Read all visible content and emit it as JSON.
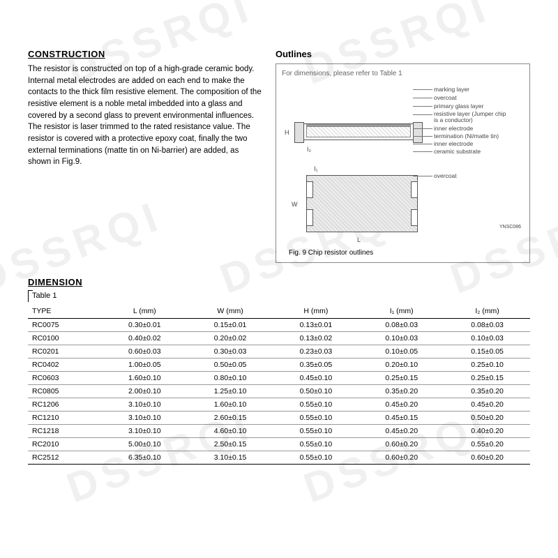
{
  "watermark": "DSSRQI",
  "construction": {
    "title": "CONSTRUCTION",
    "body": "The resistor is constructed on top of a high-grade ceramic body. Internal metal electrodes are added on each end to make the contacts to the thick film resistive element. The composition of the resistive element is a noble metal imbedded into a glass and covered by a second glass to prevent environmental influences. The resistor is laser trimmed to the rated resistance value. The resistor is covered with a protective epoxy coat, finally the two external terminations (matte tin on Ni-barrier) are added, as shown in Fig.9."
  },
  "outlines": {
    "title": "Outlines",
    "box_caption": "For dimensions, please refer to Table 1",
    "layer_labels": {
      "marking": "marking layer",
      "overcoat": "overcoat",
      "primary_glass": "primary glass layer",
      "resistive": "resistive layer (Jumper chip is a conductor)",
      "inner_electrode": "inner electrode",
      "termination": "termination (Ni/matte tin)",
      "inner_electrode2": "inner electrode",
      "substrate": "ceramic substrate"
    },
    "chip_overcoat": "overcoat",
    "dims": {
      "H": "H",
      "W": "W",
      "L": "L",
      "I1": "I₁",
      "I2": "I₂"
    },
    "fig_caption": "Fig. 9   Chip resistor outlines",
    "corner": "YNSC086"
  },
  "dimension": {
    "title": "DIMENSION",
    "table_label": "Table 1",
    "columns": [
      "TYPE",
      "L (mm)",
      "W (mm)",
      "H (mm)",
      "I₁ (mm)",
      "I₂ (mm)"
    ],
    "col_keys": [
      "type",
      "l",
      "w",
      "h",
      "i1",
      "i2"
    ],
    "rows": [
      {
        "type": "RC0075",
        "l": "0.30±0.01",
        "w": "0.15±0.01",
        "h": "0.13±0.01",
        "i1": "0.08±0.03",
        "i2": "0.08±0.03"
      },
      {
        "type": "RC0100",
        "l": "0.40±0.02",
        "w": "0.20±0.02",
        "h": "0.13±0.02",
        "i1": "0.10±0.03",
        "i2": "0.10±0.03"
      },
      {
        "type": "RC0201",
        "l": "0.60±0.03",
        "w": "0.30±0.03",
        "h": "0.23±0.03",
        "i1": "0.10±0.05",
        "i2": "0.15±0.05"
      },
      {
        "type": "RC0402",
        "l": "1.00±0.05",
        "w": "0.50±0.05",
        "h": "0.35±0.05",
        "i1": "0.20±0.10",
        "i2": "0.25±0.10"
      },
      {
        "type": "RC0603",
        "l": "1.60±0.10",
        "w": "0.80±0.10",
        "h": "0.45±0.10",
        "i1": "0.25±0.15",
        "i2": "0.25±0.15"
      },
      {
        "type": "RC0805",
        "l": "2.00±0.10",
        "w": "1.25±0.10",
        "h": "0.50±0.10",
        "i1": "0.35±0.20",
        "i2": "0.35±0.20"
      },
      {
        "type": "RC1206",
        "l": "3.10±0.10",
        "w": "1.60±0.10",
        "h": "0.55±0.10",
        "i1": "0.45±0.20",
        "i2": "0.45±0.20"
      },
      {
        "type": "RC1210",
        "l": "3.10±0.10",
        "w": "2.60±0.15",
        "h": "0.55±0.10",
        "i1": "0.45±0.15",
        "i2": "0.50±0.20"
      },
      {
        "type": "RC1218",
        "l": "3.10±0.10",
        "w": "4.60±0.10",
        "h": "0.55±0.10",
        "i1": "0.45±0.20",
        "i2": "0.40±0.20"
      },
      {
        "type": "RC2010",
        "l": "5.00±0.10",
        "w": "2.50±0.15",
        "h": "0.55±0.10",
        "i1": "0.60±0.20",
        "i2": "0.55±0.20"
      },
      {
        "type": "RC2512",
        "l": "6.35±0.10",
        "w": "3.10±0.15",
        "h": "0.55±0.10",
        "i1": "0.60±0.20",
        "i2": "0.60±0.20"
      }
    ]
  },
  "style": {
    "text_color": "#000000",
    "border_color": "#999999",
    "watermark_color": "rgba(0,0,0,0.06)"
  }
}
